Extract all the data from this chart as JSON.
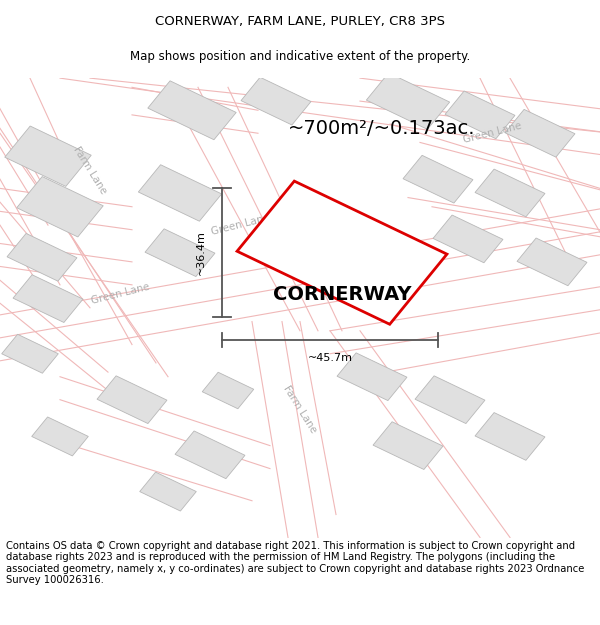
{
  "title": "CORNERWAY, FARM LANE, PURLEY, CR8 3PS",
  "subtitle": "Map shows position and indicative extent of the property.",
  "footer": "Contains OS data © Crown copyright and database right 2021. This information is subject to Crown copyright and database rights 2023 and is reproduced with the permission of HM Land Registry. The polygons (including the associated geometry, namely x, y co-ordinates) are subject to Crown copyright and database rights 2023 Ordnance Survey 100026316.",
  "area_label": "~700m²/~0.173ac.",
  "property_label": "CORNERWAY",
  "width_label": "~45.7m",
  "height_label": "~36.4m",
  "bg_color": "#ffffff",
  "map_bg": "#ffffff",
  "road_line_color": "#f0b8b8",
  "building_face_color": "#e0e0e0",
  "building_edge_color": "#b8b8b8",
  "road_label_color": "#b0b0b0",
  "property_outline_color": "#dd0000",
  "dim_line_color": "#555555",
  "title_fontsize": 9.5,
  "subtitle_fontsize": 8.5,
  "footer_fontsize": 7.2,
  "area_fontsize": 14,
  "property_fontsize": 14,
  "dim_fontsize": 8,
  "road_label_fontsize": 7.5
}
